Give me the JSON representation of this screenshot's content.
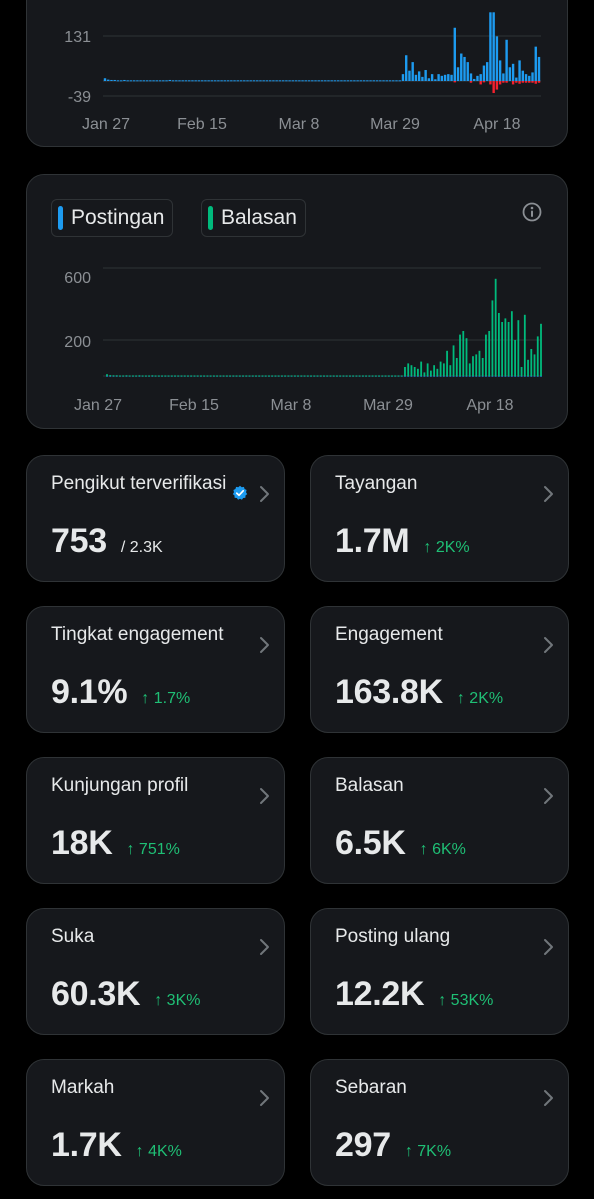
{
  "charts": {
    "top": {
      "y_ticks": [
        "131",
        "-39"
      ],
      "x_ticks": [
        "Jan 27",
        "Feb 15",
        "Mar 8",
        "Mar 29",
        "Apr 18"
      ]
    },
    "bottom": {
      "legend": [
        {
          "label": "Postingan",
          "color": "#1d9bf0"
        },
        {
          "label": "Balasan",
          "color": "#00ba7c"
        }
      ],
      "y_ticks": [
        "600",
        "200"
      ],
      "x_ticks": [
        "Jan 27",
        "Feb 15",
        "Mar 8",
        "Mar 29",
        "Apr 18"
      ]
    }
  },
  "chart_data": [
    {
      "type": "bar",
      "title": "",
      "ylim": [
        -39,
        200
      ],
      "x_ticks": [
        "Jan 27",
        "Feb 15",
        "Mar 8",
        "Mar 29",
        "Apr 18"
      ],
      "series": [
        {
          "name": "",
          "color": "#1d9bf0",
          "values": [
            8,
            4,
            3,
            3,
            2,
            2,
            3,
            2,
            2,
            2,
            2,
            2,
            2,
            2,
            2,
            2,
            2,
            2,
            2,
            2,
            3,
            2,
            2,
            2,
            2,
            2,
            2,
            2,
            2,
            2,
            2,
            2,
            2,
            2,
            2,
            2,
            2,
            2,
            2,
            2,
            2,
            2,
            2,
            2,
            2,
            2,
            2,
            2,
            2,
            2,
            2,
            2,
            2,
            2,
            2,
            2,
            2,
            2,
            2,
            2,
            2,
            2,
            2,
            2,
            2,
            2,
            2,
            2,
            2,
            2,
            2,
            2,
            2,
            2,
            2,
            2,
            2,
            2,
            2,
            2,
            2,
            2,
            2,
            2,
            2,
            2,
            2,
            2,
            2,
            2,
            2,
            2,
            20,
            75,
            30,
            55,
            18,
            28,
            12,
            32,
            8,
            20,
            5,
            20,
            15,
            18,
            20,
            18,
            155,
            40,
            80,
            70,
            55,
            22,
            6,
            15,
            20,
            45,
            55,
            200,
            200,
            130,
            60,
            22,
            120,
            40,
            50,
            10,
            60,
            30,
            20,
            15,
            25,
            100,
            70
          ]
        },
        {
          "name": "",
          "color": "#f4212e",
          "values": [
            0,
            0,
            0,
            0,
            0,
            0,
            0,
            0,
            0,
            0,
            0,
            0,
            0,
            0,
            0,
            0,
            0,
            0,
            0,
            0,
            0,
            0,
            0,
            0,
            0,
            0,
            0,
            0,
            0,
            0,
            0,
            0,
            0,
            0,
            0,
            0,
            0,
            0,
            0,
            0,
            0,
            0,
            0,
            0,
            0,
            0,
            0,
            0,
            0,
            0,
            0,
            0,
            0,
            0,
            0,
            0,
            0,
            0,
            0,
            0,
            0,
            0,
            0,
            0,
            0,
            0,
            0,
            0,
            0,
            0,
            0,
            0,
            0,
            0,
            0,
            0,
            0,
            0,
            0,
            0,
            0,
            0,
            0,
            0,
            0,
            0,
            0,
            0,
            0,
            0,
            0,
            0,
            0,
            0,
            0,
            0,
            0,
            0,
            0,
            0,
            0,
            0,
            0,
            0,
            0,
            0,
            0,
            0,
            -4,
            0,
            0,
            0,
            0,
            -5,
            0,
            0,
            -10,
            -4,
            0,
            -10,
            -35,
            -25,
            -10,
            -5,
            -5,
            0,
            -10,
            -5,
            -8,
            -5,
            -5,
            -5,
            -5,
            -8,
            -5
          ]
        }
      ]
    },
    {
      "type": "bar",
      "title": "",
      "ylim": [
        0,
        700
      ],
      "x_ticks": [
        "Jan 27",
        "Feb 15",
        "Mar 8",
        "Mar 29",
        "Apr 18"
      ],
      "series": [
        {
          "name": "Postingan",
          "color": "#1d9bf0",
          "values": [
            2,
            2,
            2,
            2,
            2,
            2,
            2,
            2,
            2,
            2,
            2,
            2,
            2,
            2,
            2,
            2,
            2,
            2,
            2,
            2,
            2,
            2,
            2,
            2,
            2,
            2,
            2,
            2,
            2,
            2,
            2,
            2,
            2,
            2,
            2,
            2,
            2,
            2,
            2,
            2,
            2,
            2,
            2,
            2,
            2,
            2,
            2,
            2,
            2,
            2,
            2,
            2,
            2,
            2,
            2,
            2,
            2,
            2,
            2,
            2,
            2,
            2,
            2,
            2,
            2,
            2,
            2,
            2,
            2,
            2,
            2,
            2,
            2,
            2,
            2,
            2,
            2,
            2,
            2,
            2,
            2,
            2,
            2,
            2,
            2,
            2,
            2,
            2,
            2,
            2,
            2,
            2,
            2,
            2,
            2,
            2,
            2,
            2,
            2,
            2,
            2,
            2,
            2,
            2,
            2,
            2,
            2,
            2,
            2,
            2,
            2,
            2,
            2,
            2,
            2,
            2,
            2,
            2,
            2,
            2,
            2,
            2,
            2,
            2,
            2,
            2,
            2,
            2,
            2,
            2,
            2,
            2,
            2,
            2,
            2
          ]
        },
        {
          "name": "Balasan",
          "color": "#00ba7c",
          "values": [
            10,
            5,
            4,
            4,
            3,
            3,
            4,
            3,
            3,
            3,
            4,
            3,
            3,
            3,
            4,
            3,
            3,
            3,
            3,
            3,
            3,
            3,
            3,
            3,
            3,
            3,
            3,
            3,
            3,
            3,
            3,
            3,
            3,
            3,
            3,
            3,
            3,
            3,
            3,
            3,
            3,
            3,
            3,
            3,
            3,
            3,
            3,
            3,
            3,
            3,
            3,
            3,
            3,
            3,
            3,
            3,
            3,
            3,
            3,
            3,
            3,
            3,
            3,
            3,
            3,
            3,
            3,
            3,
            3,
            3,
            3,
            3,
            3,
            3,
            3,
            3,
            3,
            3,
            3,
            3,
            3,
            3,
            3,
            3,
            3,
            3,
            3,
            3,
            3,
            3,
            3,
            3,
            50,
            70,
            60,
            50,
            40,
            80,
            20,
            70,
            30,
            60,
            40,
            80,
            70,
            140,
            60,
            170,
            100,
            230,
            250,
            210,
            70,
            110,
            120,
            140,
            100,
            230,
            250,
            420,
            540,
            350,
            300,
            320,
            300,
            360,
            200,
            310,
            50,
            340,
            90,
            150,
            120,
            220,
            290
          ]
        }
      ]
    }
  ],
  "metrics": [
    {
      "label": "Pengikut terverifikasi",
      "value": "753",
      "sub": "/ 2.3K",
      "verified": true
    },
    {
      "label": "Tayangan",
      "value": "1.7M",
      "delta": "↑ 2K%"
    },
    {
      "label": "Tingkat engagement",
      "value": "9.1%",
      "delta": "↑ 1.7%"
    },
    {
      "label": "Engagement",
      "value": "163.8K",
      "delta": "↑ 2K%"
    },
    {
      "label": "Kunjungan profil",
      "value": "18K",
      "delta": "↑ 751%"
    },
    {
      "label": "Balasan",
      "value": "6.5K",
      "delta": "↑ 6K%"
    },
    {
      "label": "Suka",
      "value": "60.3K",
      "delta": "↑ 3K%"
    },
    {
      "label": "Posting ulang",
      "value": "12.2K",
      "delta": "↑ 53K%"
    },
    {
      "label": "Markah",
      "value": "1.7K",
      "delta": "↑ 4K%"
    },
    {
      "label": "Sebaran",
      "value": "297",
      "delta": "↑ 7K%"
    }
  ],
  "colors": {
    "accent": "#1d9bf0",
    "positive": "#1fbf75",
    "negative": "#f4212e",
    "card": "#16181c",
    "border": "#2f3336"
  }
}
